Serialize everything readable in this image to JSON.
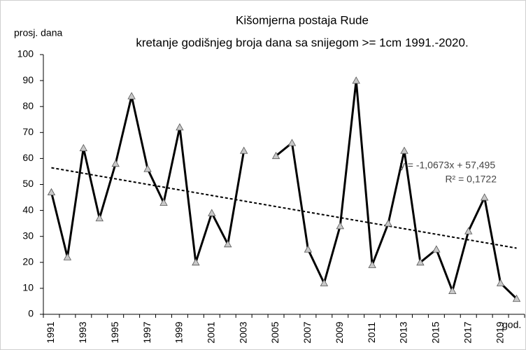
{
  "chart_data": {
    "type": "line",
    "title": "Kišomjerna postaja Rude",
    "subtitle": "kretanje godišnjeg broja dana sa snijegom >= 1cm 1991.-2020.",
    "y_label": "prosj. dana",
    "x_label": "god.",
    "categories": [
      "1991",
      null,
      "1993",
      null,
      "1995",
      null,
      "1997",
      null,
      "1999",
      null,
      "2001",
      null,
      "2003",
      null,
      "2005",
      null,
      "2007",
      null,
      "2009",
      null,
      "2011",
      null,
      "2013",
      null,
      "2015",
      null,
      "2017",
      null,
      "2019",
      null
    ],
    "series": [
      {
        "name": "prosj. dana",
        "color": "#000000",
        "values": [
          47,
          22,
          64,
          37,
          58,
          84,
          56,
          43,
          72,
          20,
          39,
          27,
          63,
          null,
          61,
          66,
          25,
          12,
          34,
          90,
          19,
          35,
          63,
          20,
          25,
          9,
          32,
          45,
          12,
          6
        ]
      }
    ],
    "trendline": {
      "slope": -1.0673,
      "intercept": 57.495,
      "equation": "y = -1,0673x + 57,495",
      "r_squared": "R² = 0,1722"
    },
    "ylim": [
      0,
      100
    ],
    "yticks": [
      0,
      10,
      20,
      30,
      40,
      50,
      60,
      70,
      80,
      90,
      100
    ],
    "grid": false
  }
}
